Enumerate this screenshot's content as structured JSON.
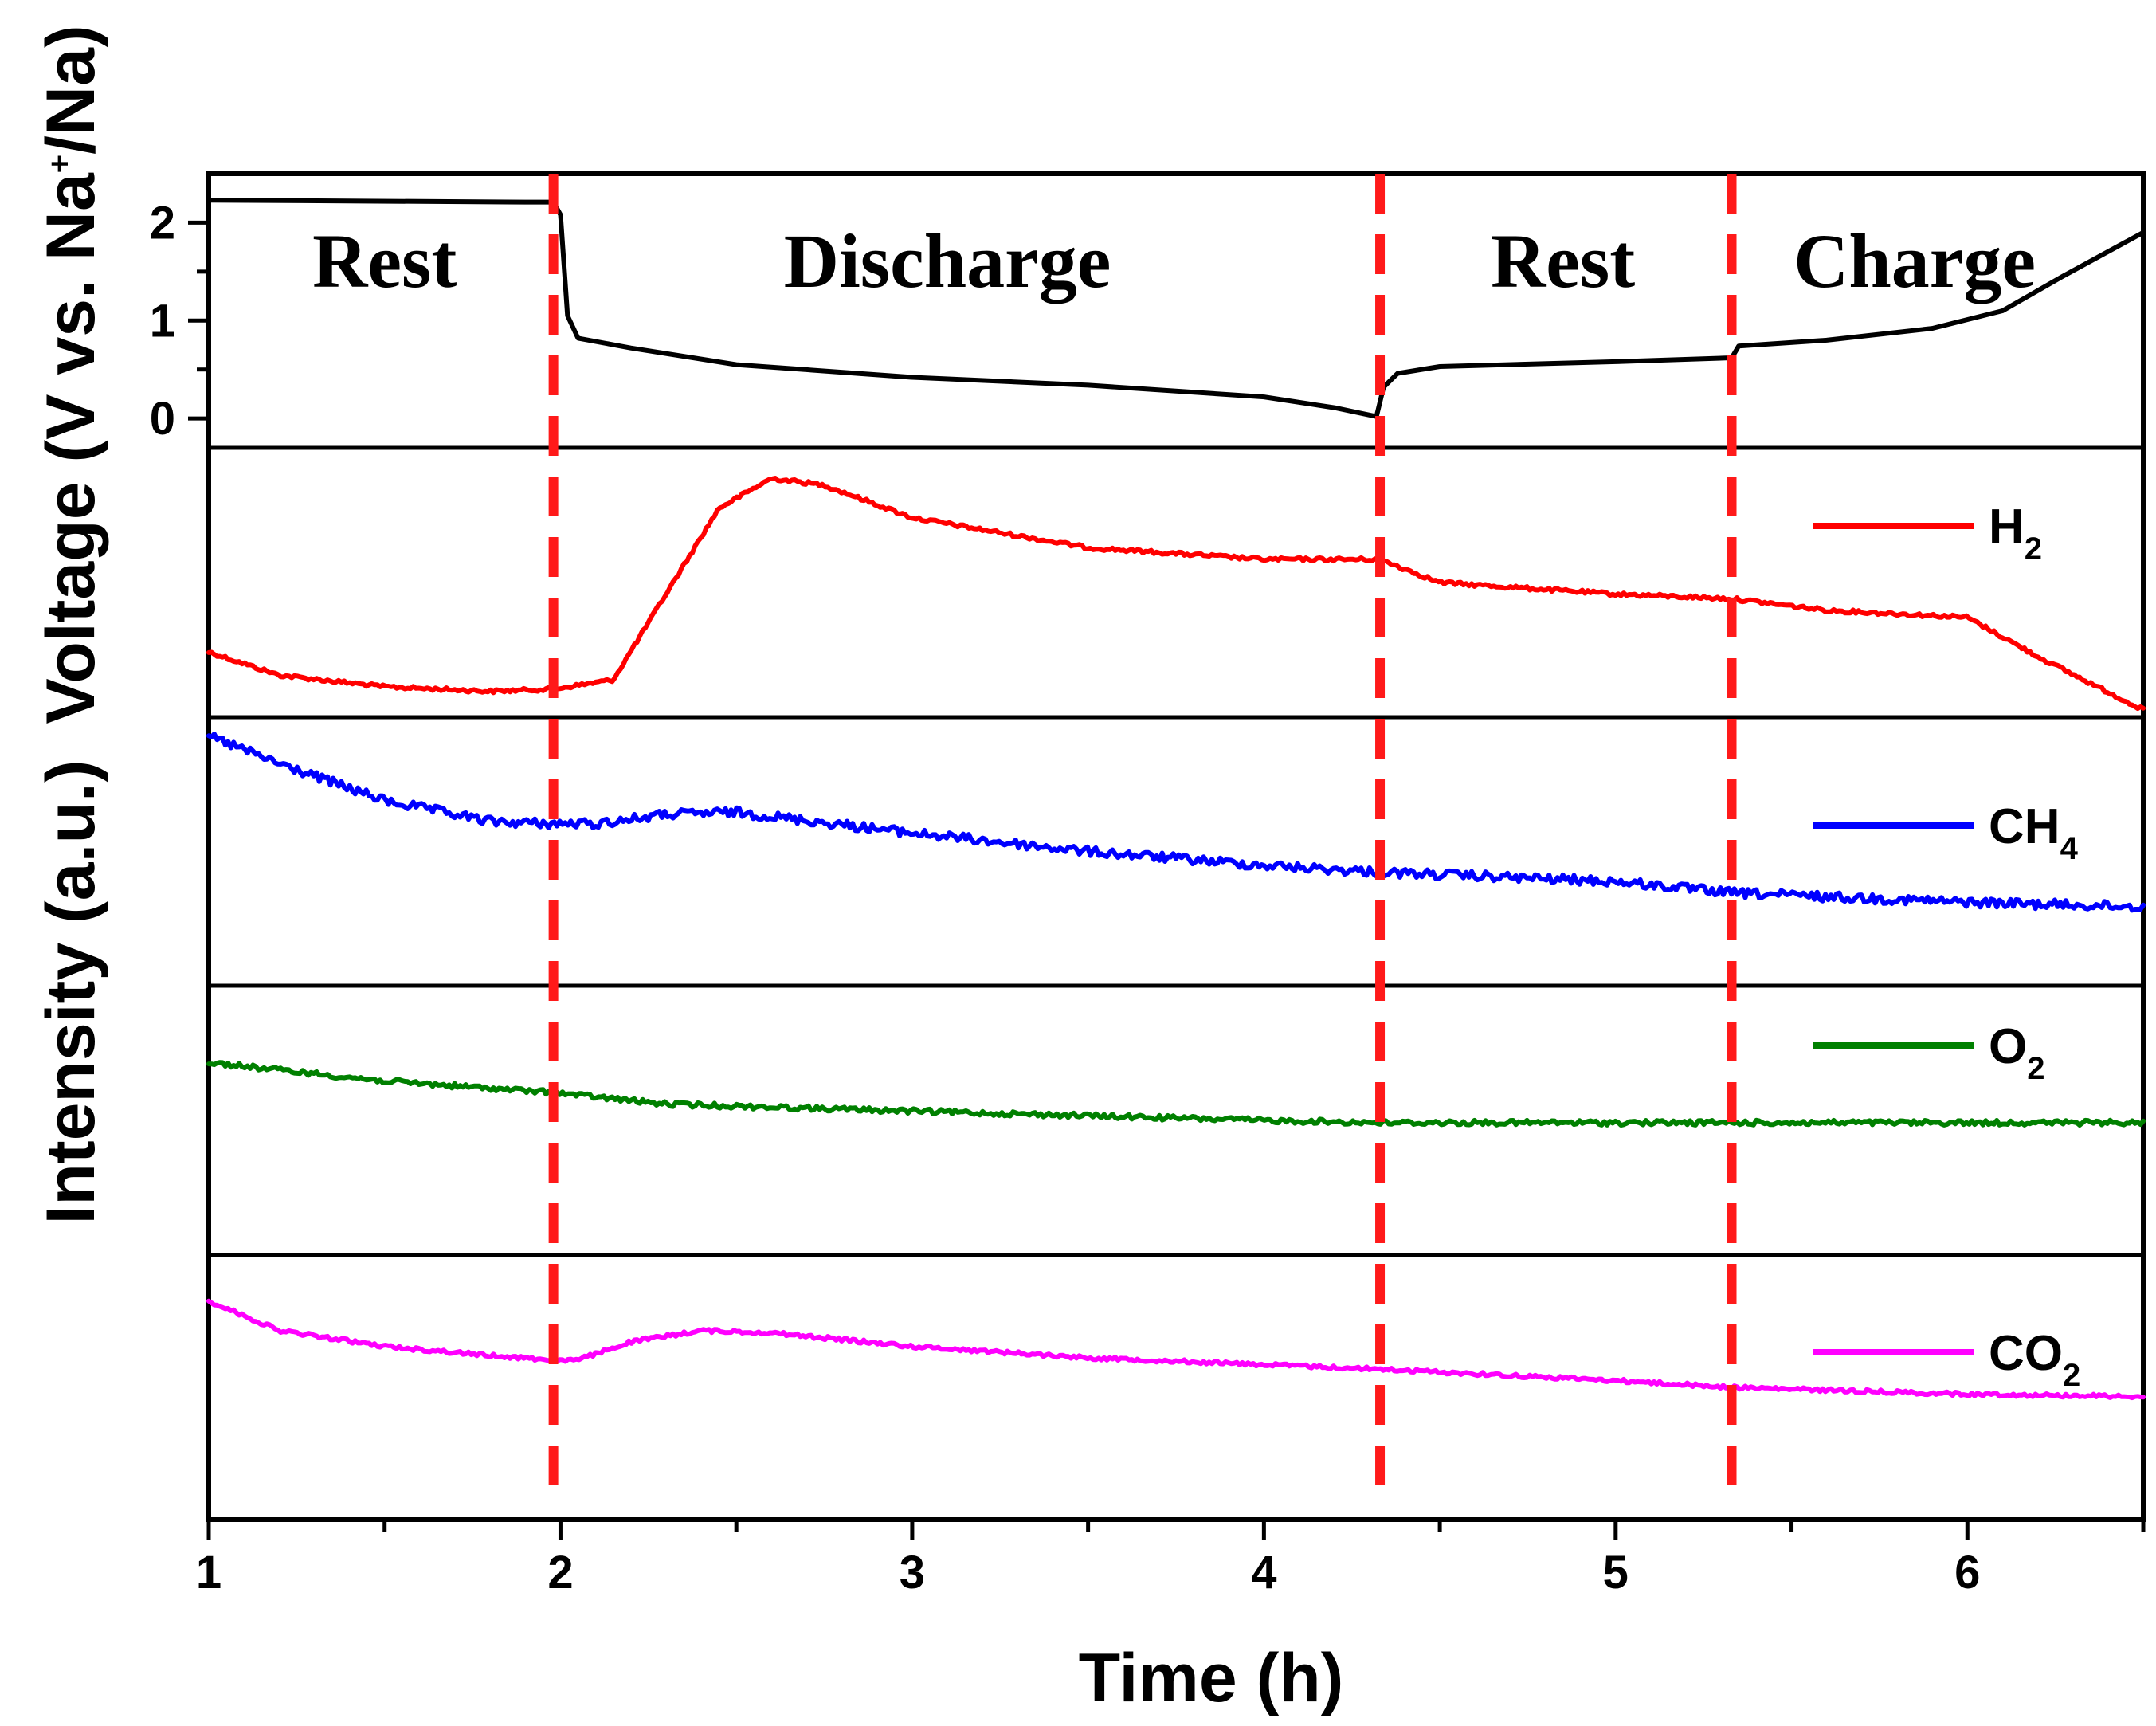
{
  "chart_data": {
    "type": "line",
    "xlabel": "Time (h)",
    "xlim": [
      1,
      6.5
    ],
    "x_ticks": [
      "1",
      "2",
      "3",
      "4",
      "5",
      "6"
    ],
    "phase_boundaries_h": [
      1.98,
      4.33,
      5.33
    ],
    "phases": [
      {
        "label": "Rest",
        "x_center": 1.5
      },
      {
        "label": "Discharge",
        "x_center": 3.1
      },
      {
        "label": "Rest",
        "x_center": 4.85
      },
      {
        "label": "Charge",
        "x_center": 5.85
      }
    ],
    "voltage": {
      "ylabel_prefix": "Voltage (V vs. Na",
      "ylabel_sup": "+",
      "ylabel_suffix": "/Na)",
      "ylim": [
        -0.3,
        2.5
      ],
      "y_ticks": [
        "0",
        "1",
        "2"
      ],
      "color": "#000000",
      "x": [
        1.0,
        1.9,
        1.98,
        2.0,
        2.02,
        2.05,
        2.2,
        2.5,
        3.0,
        3.5,
        4.0,
        4.2,
        4.32,
        4.34,
        4.38,
        4.5,
        5.0,
        5.33,
        5.35,
        5.6,
        5.9,
        6.1,
        6.27,
        6.5
      ],
      "y": [
        2.23,
        2.21,
        2.21,
        2.08,
        1.05,
        0.82,
        0.72,
        0.55,
        0.42,
        0.34,
        0.22,
        0.11,
        0.02,
        0.32,
        0.46,
        0.53,
        0.58,
        0.62,
        0.74,
        0.8,
        0.92,
        1.1,
        1.45,
        1.9
      ]
    },
    "ylabel_intensity": "Intensity (a.u.)",
    "series": [
      {
        "name": "H",
        "sub": "2",
        "color": "#ff0000",
        "noise": 1.0,
        "x": [
          1.0,
          1.2,
          1.5,
          1.8,
          1.98,
          2.15,
          2.3,
          2.45,
          2.6,
          2.75,
          3.0,
          3.5,
          4.0,
          4.33,
          4.5,
          5.0,
          5.33,
          5.6,
          6.0,
          6.2,
          6.5
        ],
        "y": [
          0.2,
          0.1,
          0.05,
          0.03,
          0.04,
          0.08,
          0.45,
          0.82,
          0.95,
          0.92,
          0.78,
          0.65,
          0.6,
          0.6,
          0.5,
          0.45,
          0.43,
          0.38,
          0.35,
          0.18,
          -0.05
        ]
      },
      {
        "name": "CH",
        "sub": "4",
        "color": "#0000ff",
        "noise": 2.6,
        "x": [
          1.0,
          1.2,
          1.5,
          1.8,
          1.98,
          2.1,
          2.3,
          2.5,
          3.0,
          3.5,
          4.0,
          4.33,
          5.0,
          5.33,
          6.0,
          6.5
        ],
        "y": [
          1.0,
          0.88,
          0.72,
          0.63,
          0.62,
          0.62,
          0.66,
          0.67,
          0.58,
          0.5,
          0.44,
          0.41,
          0.37,
          0.32,
          0.28,
          0.26
        ]
      },
      {
        "name": "O",
        "sub": "2",
        "color": "#008000",
        "noise": 1.4,
        "x": [
          1.0,
          1.5,
          1.98,
          2.3,
          3.0,
          3.5,
          4.0,
          4.33,
          5.0,
          5.33,
          6.0,
          6.5
        ],
        "y": [
          0.75,
          0.67,
          0.62,
          0.57,
          0.54,
          0.52,
          0.5,
          0.49,
          0.49,
          0.49,
          0.49,
          0.49
        ]
      },
      {
        "name": "CO",
        "sub": "2",
        "color": "#ff00ff",
        "noise": 1.0,
        "x": [
          1.0,
          1.2,
          1.5,
          1.8,
          1.98,
          2.05,
          2.2,
          2.4,
          2.6,
          3.0,
          3.5,
          4.0,
          4.33,
          5.0,
          5.33,
          6.0,
          6.5
        ],
        "y": [
          0.88,
          0.75,
          0.68,
          0.64,
          0.62,
          0.62,
          0.7,
          0.75,
          0.74,
          0.68,
          0.63,
          0.6,
          0.58,
          0.53,
          0.5,
          0.47,
          0.46
        ]
      }
    ]
  }
}
